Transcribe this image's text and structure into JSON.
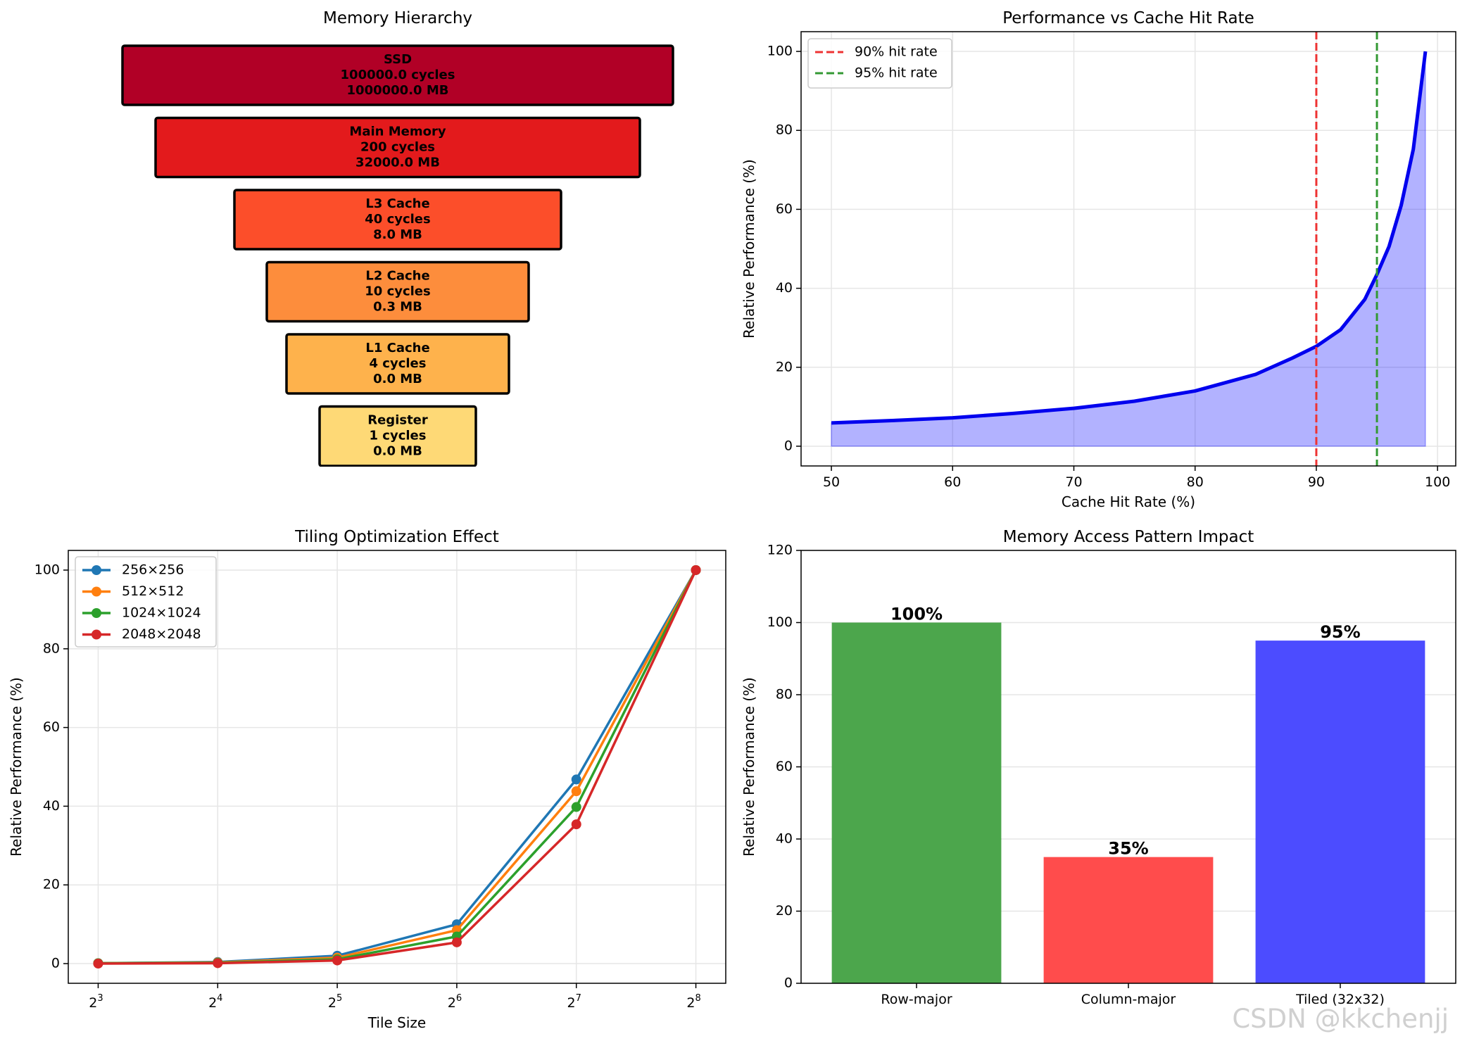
{
  "chart_data": [
    {
      "type": "bar",
      "variant": "pyramid",
      "title": "Memory Hierarchy",
      "levels": [
        {
          "name": "SSD",
          "latency": "100000.0 cycles",
          "size": "1000000.0 MB",
          "color": "#b10026"
        },
        {
          "name": "Main Memory",
          "latency": "200 cycles",
          "size": "32000.0 MB",
          "color": "#e31a1c"
        },
        {
          "name": "L3 Cache",
          "latency": "40 cycles",
          "size": "8.0 MB",
          "color": "#fc4e2a"
        },
        {
          "name": "L2 Cache",
          "latency": "10 cycles",
          "size": "0.3 MB",
          "color": "#fd8d3c"
        },
        {
          "name": "L1 Cache",
          "latency": "4 cycles",
          "size": "0.0 MB",
          "color": "#feb24c"
        },
        {
          "name": "Register",
          "latency": "1 cycles",
          "size": "0.0 MB",
          "color": "#fed976"
        }
      ]
    },
    {
      "type": "area",
      "title": "Performance vs Cache Hit Rate",
      "xlabel": "Cache Hit Rate (%)",
      "ylabel": "Relative Performance (%)",
      "xlim": [
        47.5,
        101.5
      ],
      "ylim": [
        -5,
        105
      ],
      "xticks": [
        50,
        60,
        70,
        80,
        90,
        100
      ],
      "yticks": [
        0,
        20,
        40,
        60,
        80,
        100
      ],
      "grid": true,
      "legend": "top-left",
      "series": [
        {
          "x": [
            50,
            55,
            60,
            65,
            70,
            75,
            80,
            85,
            88,
            90,
            92,
            94,
            95,
            96,
            97,
            98,
            99
          ],
          "values": [
            5.9,
            6.5,
            7.2,
            8.3,
            9.6,
            11.4,
            14.0,
            18.2,
            22.3,
            25.3,
            29.5,
            37.2,
            43.5,
            50.6,
            61.0,
            75.2,
            100
          ],
          "color": "#0000ee"
        }
      ],
      "vlines": [
        {
          "x": 90,
          "label": "90% hit rate",
          "color": "#ee3333"
        },
        {
          "x": 95,
          "label": "95% hit rate",
          "color": "#339933"
        }
      ]
    },
    {
      "type": "line",
      "title": "Tiling Optimization Effect",
      "xlabel": "Tile Size",
      "ylabel": "Relative Performance (%)",
      "xscale": "log2",
      "x": [
        8,
        16,
        32,
        64,
        128,
        256
      ],
      "xticks": [
        {
          "base": "2",
          "exp": "3"
        },
        {
          "base": "2",
          "exp": "4"
        },
        {
          "base": "2",
          "exp": "5"
        },
        {
          "base": "2",
          "exp": "6"
        },
        {
          "base": "2",
          "exp": "7"
        },
        {
          "base": "2",
          "exp": "8"
        }
      ],
      "ylim": [
        -5,
        105
      ],
      "yticks": [
        0,
        20,
        40,
        60,
        80,
        100
      ],
      "grid": true,
      "legend": "top-left",
      "series": [
        {
          "name": "256×256",
          "values": [
            0.1,
            0.4,
            2.0,
            10.0,
            46.8,
            100
          ],
          "color": "#1f77b4"
        },
        {
          "name": "512×512",
          "values": [
            0.1,
            0.3,
            1.5,
            8.5,
            43.8,
            100
          ],
          "color": "#ff7f0e"
        },
        {
          "name": "1024×1024",
          "values": [
            0.1,
            0.2,
            1.1,
            6.9,
            39.8,
            100
          ],
          "color": "#2ca02c"
        },
        {
          "name": "2048×2048",
          "values": [
            0.0,
            0.1,
            0.8,
            5.4,
            35.4,
            100
          ],
          "color": "#d62728"
        }
      ]
    },
    {
      "type": "bar",
      "title": "Memory Access Pattern Impact",
      "ylabel": "Relative Performance (%)",
      "categories": [
        "Row-major",
        "Column-major",
        "Tiled (32x32)"
      ],
      "values": [
        100,
        35,
        95
      ],
      "value_labels": [
        "100%",
        "35%",
        "95%"
      ],
      "colors": [
        "#4ca64c",
        "#ff4c4c",
        "#4c4cff"
      ],
      "ylim": [
        0,
        120
      ],
      "yticks": [
        0,
        20,
        40,
        60,
        80,
        100,
        120
      ],
      "grid": true
    }
  ],
  "watermark": "CSDN @kkchenjj"
}
